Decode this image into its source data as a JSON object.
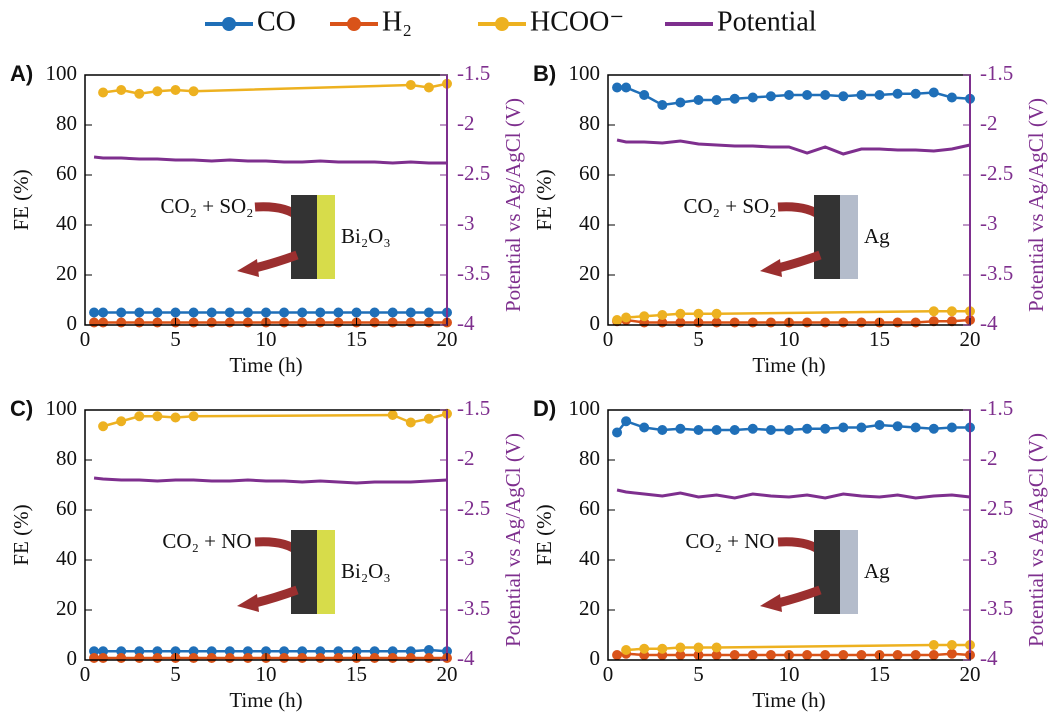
{
  "chart_data": [
    {
      "type": "line",
      "panel_label": "A)",
      "xlabel": "Time (h)",
      "ylabel": "FE (%)",
      "y2label": "Potential vs Ag/AgCl (V)",
      "annotation": "CO₂ + SO₂",
      "electrode": "Bi₂O₃",
      "xlim": [
        0,
        20
      ],
      "xticks": [
        0,
        5,
        10,
        15,
        20
      ],
      "ylim": [
        0,
        100
      ],
      "yticks": [
        0,
        20,
        40,
        60,
        80,
        100
      ],
      "y2lim": [
        -4,
        -1.5
      ],
      "y2ticks": [
        -4,
        -3.5,
        -3,
        -2.5,
        -2,
        -1.5
      ],
      "series": [
        {
          "name": "CO",
          "color": "#1f6fb8",
          "marker": "circle",
          "x": [
            0.5,
            1,
            2,
            3,
            4,
            5,
            6,
            7,
            8,
            9,
            10,
            11,
            12,
            13,
            14,
            15,
            16,
            17,
            18,
            19,
            20
          ],
          "values": [
            5,
            5,
            5,
            5,
            5,
            5,
            5,
            5,
            5,
            5,
            5,
            5,
            5,
            5,
            5,
            5,
            5,
            5,
            5,
            5,
            5
          ]
        },
        {
          "name": "H₂",
          "color": "#d95319",
          "marker": "circle",
          "x": [
            0.5,
            1,
            2,
            3,
            4,
            5,
            6,
            7,
            8,
            9,
            10,
            11,
            12,
            13,
            14,
            15,
            16,
            17,
            18,
            19,
            20
          ],
          "values": [
            1,
            1,
            1,
            1,
            1,
            1,
            1,
            1,
            1,
            1,
            1,
            1,
            1,
            1,
            1,
            1,
            1,
            1,
            1,
            1,
            1
          ]
        },
        {
          "name": "HCOO⁻",
          "color": "#edb120",
          "marker": "circle",
          "x": [
            1,
            2,
            3,
            4,
            5,
            6,
            18,
            19,
            20
          ],
          "values": [
            93,
            94,
            92.5,
            93.5,
            94,
            93.5,
            96,
            95,
            96.5
          ]
        },
        {
          "name": "Potential",
          "color": "#7e2f8e",
          "axis": "y2",
          "x": [
            0.5,
            1,
            2,
            3,
            4,
            5,
            6,
            7,
            8,
            9,
            10,
            11,
            12,
            13,
            14,
            15,
            16,
            17,
            18,
            19,
            20
          ],
          "values": [
            -2.32,
            -2.33,
            -2.33,
            -2.34,
            -2.34,
            -2.35,
            -2.35,
            -2.36,
            -2.35,
            -2.36,
            -2.36,
            -2.37,
            -2.37,
            -2.36,
            -2.37,
            -2.37,
            -2.37,
            -2.38,
            -2.37,
            -2.38,
            -2.38
          ]
        }
      ]
    },
    {
      "type": "line",
      "panel_label": "B)",
      "xlabel": "Time (h)",
      "ylabel": "FE (%)",
      "y2label": "Potential vs Ag/AgCl (V)",
      "annotation": "CO₂ + SO₂",
      "electrode": "Ag",
      "xlim": [
        0,
        20
      ],
      "xticks": [
        0,
        5,
        10,
        15,
        20
      ],
      "ylim": [
        0,
        100
      ],
      "yticks": [
        0,
        20,
        40,
        60,
        80,
        100
      ],
      "y2lim": [
        -4,
        -1.5
      ],
      "y2ticks": [
        -4,
        -3.5,
        -3,
        -2.5,
        -2,
        -1.5
      ],
      "series": [
        {
          "name": "CO",
          "color": "#1f6fb8",
          "marker": "circle",
          "x": [
            0.5,
            1,
            2,
            3,
            4,
            5,
            6,
            7,
            8,
            9,
            10,
            11,
            12,
            13,
            14,
            15,
            16,
            17,
            18,
            19,
            20
          ],
          "values": [
            95,
            95,
            92,
            88,
            89,
            90,
            90,
            90.5,
            91,
            91.5,
            92,
            92,
            92,
            91.5,
            92,
            92,
            92.5,
            92.5,
            93,
            91,
            90.5
          ]
        },
        {
          "name": "H₂",
          "color": "#d95319",
          "marker": "circle",
          "x": [
            0.5,
            1,
            2,
            3,
            4,
            5,
            6,
            7,
            8,
            9,
            10,
            11,
            12,
            13,
            14,
            15,
            16,
            17,
            18,
            19,
            20
          ],
          "values": [
            1.5,
            2,
            1,
            1,
            1,
            1,
            1,
            1,
            1,
            1,
            1,
            1,
            1,
            1,
            1,
            1,
            1,
            1,
            1.5,
            1.5,
            2
          ]
        },
        {
          "name": "HCOO⁻",
          "color": "#edb120",
          "marker": "circle",
          "x": [
            0.5,
            1,
            2,
            3,
            4,
            5,
            6,
            18,
            19,
            20
          ],
          "values": [
            2,
            3,
            3.5,
            4,
            4.5,
            4.5,
            4.5,
            5.5,
            5.5,
            5.5
          ]
        },
        {
          "name": "Potential",
          "color": "#7e2f8e",
          "axis": "y2",
          "x": [
            0.5,
            1,
            2,
            3,
            4,
            5,
            6,
            7,
            8,
            9,
            10,
            11,
            12,
            13,
            14,
            15,
            16,
            17,
            18,
            19,
            20
          ],
          "values": [
            -2.15,
            -2.17,
            -2.17,
            -2.18,
            -2.16,
            -2.19,
            -2.2,
            -2.21,
            -2.21,
            -2.22,
            -2.22,
            -2.28,
            -2.22,
            -2.29,
            -2.24,
            -2.24,
            -2.25,
            -2.25,
            -2.26,
            -2.24,
            -2.2
          ]
        }
      ]
    },
    {
      "type": "line",
      "panel_label": "C)",
      "xlabel": "Time (h)",
      "ylabel": "FE (%)",
      "y2label": "Potential vs Ag/AgCl (V)",
      "annotation": "CO₂ + NO",
      "electrode": "Bi₂O₃",
      "xlim": [
        0,
        20
      ],
      "xticks": [
        0,
        5,
        10,
        15,
        20
      ],
      "ylim": [
        0,
        100
      ],
      "yticks": [
        0,
        20,
        40,
        60,
        80,
        100
      ],
      "y2lim": [
        -4,
        -1.5
      ],
      "y2ticks": [
        -4,
        -3.5,
        -3,
        -2.5,
        -2,
        -1.5
      ],
      "series": [
        {
          "name": "CO",
          "color": "#1f6fb8",
          "marker": "circle",
          "x": [
            0.5,
            1,
            2,
            3,
            4,
            5,
            6,
            7,
            8,
            9,
            10,
            11,
            12,
            13,
            14,
            15,
            16,
            17,
            18,
            19,
            20
          ],
          "values": [
            3.5,
            3.5,
            3.5,
            3.5,
            3.5,
            3.5,
            3.5,
            3.5,
            3.5,
            3.5,
            3.5,
            3.5,
            3.5,
            3.5,
            3.5,
            3.5,
            3.5,
            3.5,
            3.5,
            4,
            3.5
          ]
        },
        {
          "name": "H₂",
          "color": "#d95319",
          "marker": "circle",
          "x": [
            0.5,
            1,
            2,
            3,
            4,
            5,
            6,
            7,
            8,
            9,
            10,
            11,
            12,
            13,
            14,
            15,
            16,
            17,
            18,
            19,
            20
          ],
          "values": [
            0.8,
            0.8,
            0.8,
            0.8,
            0.8,
            0.8,
            0.8,
            0.8,
            0.8,
            0.8,
            0.8,
            0.8,
            0.8,
            0.8,
            0.8,
            0.8,
            0.8,
            0.8,
            0.8,
            0.8,
            0.8
          ]
        },
        {
          "name": "HCOO⁻",
          "color": "#edb120",
          "marker": "circle",
          "x": [
            1,
            2,
            3,
            4,
            5,
            6,
            17,
            18,
            19,
            20
          ],
          "values": [
            93.5,
            95.5,
            97.5,
            97.5,
            97,
            97.5,
            98,
            95,
            96.5,
            98.5
          ]
        },
        {
          "name": "Potential",
          "color": "#7e2f8e",
          "axis": "y2",
          "x": [
            0.5,
            1,
            2,
            3,
            4,
            5,
            6,
            7,
            8,
            9,
            10,
            11,
            12,
            13,
            14,
            15,
            16,
            17,
            18,
            19,
            20
          ],
          "values": [
            -2.18,
            -2.19,
            -2.2,
            -2.2,
            -2.21,
            -2.2,
            -2.2,
            -2.21,
            -2.21,
            -2.2,
            -2.21,
            -2.21,
            -2.22,
            -2.21,
            -2.22,
            -2.23,
            -2.22,
            -2.22,
            -2.22,
            -2.21,
            -2.2
          ]
        }
      ]
    },
    {
      "type": "line",
      "panel_label": "D)",
      "xlabel": "Time (h)",
      "ylabel": "FE (%)",
      "y2label": "Potential vs Ag/AgCl (V)",
      "annotation": "CO₂ + NO",
      "electrode": "Ag",
      "xlim": [
        0,
        20
      ],
      "xticks": [
        0,
        5,
        10,
        15,
        20
      ],
      "ylim": [
        0,
        100
      ],
      "yticks": [
        0,
        20,
        40,
        60,
        80,
        100
      ],
      "y2lim": [
        -4,
        -1.5
      ],
      "y2ticks": [
        -4,
        -3.5,
        -3,
        -2.5,
        -2,
        -1.5
      ],
      "series": [
        {
          "name": "CO",
          "color": "#1f6fb8",
          "marker": "circle",
          "x": [
            0.5,
            1,
            2,
            3,
            4,
            5,
            6,
            7,
            8,
            9,
            10,
            11,
            12,
            13,
            14,
            15,
            16,
            17,
            18,
            19,
            20
          ],
          "values": [
            91,
            95.5,
            93,
            92,
            92.5,
            92,
            92,
            92,
            92.5,
            92,
            92,
            92.5,
            92.5,
            93,
            93,
            94,
            93.5,
            93,
            92.5,
            93,
            93
          ]
        },
        {
          "name": "H₂",
          "color": "#d95319",
          "marker": "circle",
          "x": [
            0.5,
            1,
            2,
            3,
            4,
            5,
            6,
            7,
            8,
            9,
            10,
            11,
            12,
            13,
            14,
            15,
            16,
            17,
            18,
            19,
            20
          ],
          "values": [
            2,
            2.5,
            2,
            2,
            2,
            2,
            2,
            2,
            2,
            2,
            2,
            2,
            2,
            2,
            2,
            2,
            2,
            2,
            2,
            2.5,
            2
          ]
        },
        {
          "name": "HCOO⁻",
          "color": "#edb120",
          "marker": "circle",
          "x": [
            1,
            2,
            3,
            4,
            5,
            6,
            18,
            19,
            20
          ],
          "values": [
            4,
            4.5,
            4.5,
            5,
            5,
            5,
            6,
            6,
            6
          ]
        },
        {
          "name": "Potential",
          "color": "#7e2f8e",
          "axis": "y2",
          "x": [
            0.5,
            1,
            2,
            3,
            4,
            5,
            6,
            7,
            8,
            9,
            10,
            11,
            12,
            13,
            14,
            15,
            16,
            17,
            18,
            19,
            20
          ],
          "values": [
            -2.3,
            -2.32,
            -2.34,
            -2.36,
            -2.33,
            -2.37,
            -2.35,
            -2.38,
            -2.34,
            -2.36,
            -2.37,
            -2.35,
            -2.38,
            -2.34,
            -2.36,
            -2.37,
            -2.35,
            -2.38,
            -2.36,
            -2.35,
            -2.37
          ]
        }
      ]
    }
  ]
}
